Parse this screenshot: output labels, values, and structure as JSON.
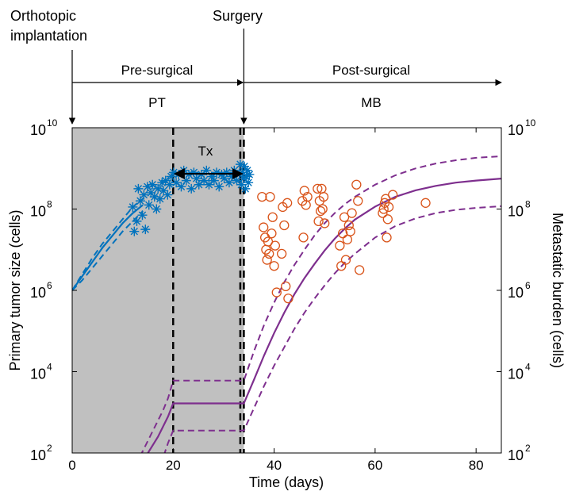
{
  "annotations": {
    "implantation_line1": "Orthotopic",
    "implantation_line2": "implantation",
    "surgery": "Surgery",
    "pre_surgical": "Pre-surgical",
    "post_surgical": "Post-surgical",
    "pt": "PT",
    "mb": "MB",
    "tx": "Tx"
  },
  "chart_data": {
    "type": "scatter",
    "title": "",
    "xlabel": "Time (days)",
    "ylabel_left": "Primary tumor size (cells)",
    "ylabel_right": "Metastatic burden (cells)",
    "xlim": [
      0,
      85
    ],
    "ylim_log10": [
      2,
      10
    ],
    "y_scale": "log",
    "x_ticks": [
      0,
      20,
      40,
      60,
      80
    ],
    "y_ticks": [
      {
        "base": "10",
        "exp": "2"
      },
      {
        "base": "10",
        "exp": "4"
      },
      {
        "base": "10",
        "exp": "6"
      },
      {
        "base": "10",
        "exp": "8"
      },
      {
        "base": "10",
        "exp": "10"
      }
    ],
    "colors": {
      "pt": "#0072BD",
      "mb_obs": "#D95319",
      "mb_fit": "#7E2F8E",
      "shade": "#c0c0c0"
    },
    "vlines_days": [
      20,
      33.3,
      34
    ],
    "tx_days": [
      20,
      34
    ],
    "pre_surgical_days": [
      0,
      34
    ],
    "post_surgical_days": [
      34,
      85
    ],
    "pt_observations": [
      [
        12.0,
        8.05
      ],
      [
        12.3,
        7.45
      ],
      [
        12.8,
        7.7
      ],
      [
        13.1,
        8.5
      ],
      [
        13.5,
        8.2
      ],
      [
        13.9,
        7.85
      ],
      [
        14.2,
        8.35
      ],
      [
        14.5,
        7.5
      ],
      [
        14.9,
        8.55
      ],
      [
        15.2,
        8.1
      ],
      [
        15.6,
        8.4
      ],
      [
        15.9,
        8.6
      ],
      [
        16.3,
        8.3
      ],
      [
        16.7,
        8.0
      ],
      [
        17.0,
        8.5
      ],
      [
        17.4,
        8.25
      ],
      [
        17.8,
        8.65
      ],
      [
        18.1,
        8.45
      ],
      [
        18.5,
        8.7
      ],
      [
        18.9,
        8.35
      ],
      [
        19.3,
        8.6
      ],
      [
        19.6,
        8.8
      ],
      [
        20.1,
        8.9
      ],
      [
        20.6,
        8.65
      ],
      [
        21.1,
        8.85
      ],
      [
        21.6,
        8.55
      ],
      [
        22.1,
        8.95
      ],
      [
        22.6,
        8.7
      ],
      [
        23.1,
        8.85
      ],
      [
        23.6,
        8.5
      ],
      [
        24.1,
        8.9
      ],
      [
        24.6,
        8.75
      ],
      [
        25.1,
        8.6
      ],
      [
        25.6,
        8.85
      ],
      [
        26.1,
        8.7
      ],
      [
        26.6,
        8.95
      ],
      [
        27.1,
        8.6
      ],
      [
        27.6,
        8.8
      ],
      [
        28.1,
        8.7
      ],
      [
        28.6,
        8.9
      ],
      [
        29.1,
        8.55
      ],
      [
        29.6,
        8.85
      ],
      [
        30.1,
        8.75
      ],
      [
        30.6,
        8.9
      ],
      [
        31.1,
        8.65
      ],
      [
        31.6,
        8.8
      ],
      [
        32.1,
        8.95
      ],
      [
        32.6,
        8.7
      ],
      [
        33.1,
        8.85
      ],
      [
        33.3,
        9.1
      ],
      [
        33.5,
        8.6
      ],
      [
        33.7,
        8.9
      ],
      [
        33.9,
        8.75
      ],
      [
        34.1,
        9.05
      ],
      [
        34.3,
        8.5
      ],
      [
        34.5,
        8.8
      ],
      [
        34.7,
        8.95
      ],
      [
        34.9,
        8.65
      ],
      [
        35.1,
        8.85
      ]
    ],
    "mb_observations": [
      [
        37.6,
        8.3
      ],
      [
        37.9,
        7.55
      ],
      [
        38.2,
        7.3
      ],
      [
        38.4,
        7.0
      ],
      [
        38.6,
        6.75
      ],
      [
        38.8,
        7.2
      ],
      [
        39.0,
        6.9
      ],
      [
        39.2,
        8.3
      ],
      [
        39.5,
        7.4
      ],
      [
        39.7,
        7.8
      ],
      [
        40.0,
        6.6
      ],
      [
        40.2,
        7.1
      ],
      [
        40.5,
        5.95
      ],
      [
        41.5,
        6.9
      ],
      [
        41.7,
        8.05
      ],
      [
        42.0,
        7.6
      ],
      [
        42.3,
        6.1
      ],
      [
        42.6,
        8.15
      ],
      [
        42.8,
        5.8
      ],
      [
        45.6,
        8.2
      ],
      [
        45.8,
        7.3
      ],
      [
        46.0,
        8.45
      ],
      [
        46.3,
        8.1
      ],
      [
        46.6,
        8.3
      ],
      [
        48.6,
        8.5
      ],
      [
        48.8,
        7.7
      ],
      [
        49.0,
        8.2
      ],
      [
        49.2,
        7.95
      ],
      [
        49.4,
        8.5
      ],
      [
        49.6,
        8.0
      ],
      [
        49.8,
        8.3
      ],
      [
        50.0,
        7.65
      ],
      [
        53.0,
        7.1
      ],
      [
        53.3,
        6.6
      ],
      [
        53.6,
        7.4
      ],
      [
        53.9,
        7.8
      ],
      [
        54.2,
        6.75
      ],
      [
        54.5,
        7.25
      ],
      [
        54.8,
        7.6
      ],
      [
        55.1,
        7.45
      ],
      [
        55.4,
        7.9
      ],
      [
        56.3,
        8.6
      ],
      [
        56.6,
        8.2
      ],
      [
        56.9,
        6.5
      ],
      [
        61.5,
        7.9
      ],
      [
        61.7,
        8.0
      ],
      [
        61.9,
        8.15
      ],
      [
        62.1,
        8.25
      ],
      [
        62.3,
        7.3
      ],
      [
        62.5,
        7.75
      ],
      [
        62.7,
        8.05
      ],
      [
        63.5,
        8.35
      ],
      [
        70.0,
        8.15
      ]
    ],
    "pt_fit": [
      [
        0,
        6.0
      ],
      [
        2,
        6.35
      ],
      [
        4,
        6.7
      ],
      [
        6,
        7.05
      ],
      [
        8,
        7.35
      ],
      [
        10,
        7.65
      ],
      [
        12,
        7.9
      ],
      [
        14,
        8.1
      ]
    ],
    "pt_fit_lower": [
      [
        0,
        6.0
      ],
      [
        2,
        6.25
      ],
      [
        4,
        6.55
      ],
      [
        6,
        6.85
      ],
      [
        8,
        7.15
      ],
      [
        10,
        7.45
      ],
      [
        12,
        7.7
      ],
      [
        14,
        7.95
      ]
    ],
    "pt_fit_upper": [
      [
        0,
        6.0
      ],
      [
        2,
        6.4
      ],
      [
        4,
        6.8
      ],
      [
        6,
        7.15
      ],
      [
        8,
        7.45
      ],
      [
        10,
        7.75
      ],
      [
        12,
        8.05
      ],
      [
        14,
        8.25
      ]
    ],
    "mb_fit": [
      [
        13.5,
        1.7
      ],
      [
        15,
        2.0
      ],
      [
        17,
        2.4
      ],
      [
        19,
        2.9
      ],
      [
        20,
        3.22
      ],
      [
        34,
        3.22
      ],
      [
        36,
        3.8
      ],
      [
        38,
        4.4
      ],
      [
        40,
        4.95
      ],
      [
        42,
        5.45
      ],
      [
        44,
        5.9
      ],
      [
        46,
        6.3
      ],
      [
        48,
        6.65
      ],
      [
        50,
        6.98
      ],
      [
        52,
        7.27
      ],
      [
        54,
        7.52
      ],
      [
        56,
        7.74
      ],
      [
        60,
        8.06
      ],
      [
        64,
        8.3
      ],
      [
        68,
        8.46
      ],
      [
        72,
        8.57
      ],
      [
        76,
        8.65
      ],
      [
        80,
        8.7
      ],
      [
        85,
        8.75
      ]
    ],
    "mb_fit_lower": [
      [
        17.5,
        1.7
      ],
      [
        19,
        2.25
      ],
      [
        20,
        2.55
      ],
      [
        34,
        2.55
      ],
      [
        36,
        3.1
      ],
      [
        38,
        3.65
      ],
      [
        40,
        4.15
      ],
      [
        42,
        4.6
      ],
      [
        44,
        5.05
      ],
      [
        46,
        5.45
      ],
      [
        48,
        5.8
      ],
      [
        50,
        6.12
      ],
      [
        52,
        6.42
      ],
      [
        54,
        6.68
      ],
      [
        56,
        6.9
      ],
      [
        60,
        7.3
      ],
      [
        64,
        7.58
      ],
      [
        68,
        7.77
      ],
      [
        72,
        7.9
      ],
      [
        76,
        7.98
      ],
      [
        80,
        8.03
      ],
      [
        85,
        8.07
      ]
    ],
    "mb_fit_upper": [
      [
        12.5,
        1.7
      ],
      [
        14,
        2.05
      ],
      [
        16,
        2.55
      ],
      [
        18,
        3.05
      ],
      [
        19,
        3.35
      ],
      [
        20,
        3.78
      ],
      [
        34,
        3.78
      ],
      [
        36,
        4.5
      ],
      [
        38,
        5.15
      ],
      [
        40,
        5.7
      ],
      [
        42,
        6.2
      ],
      [
        44,
        6.62
      ],
      [
        46,
        7.0
      ],
      [
        48,
        7.35
      ],
      [
        50,
        7.65
      ],
      [
        52,
        7.9
      ],
      [
        54,
        8.12
      ],
      [
        56,
        8.3
      ],
      [
        60,
        8.6
      ],
      [
        64,
        8.83
      ],
      [
        68,
        9.0
      ],
      [
        72,
        9.12
      ],
      [
        76,
        9.2
      ],
      [
        80,
        9.26
      ],
      [
        85,
        9.3
      ]
    ]
  }
}
